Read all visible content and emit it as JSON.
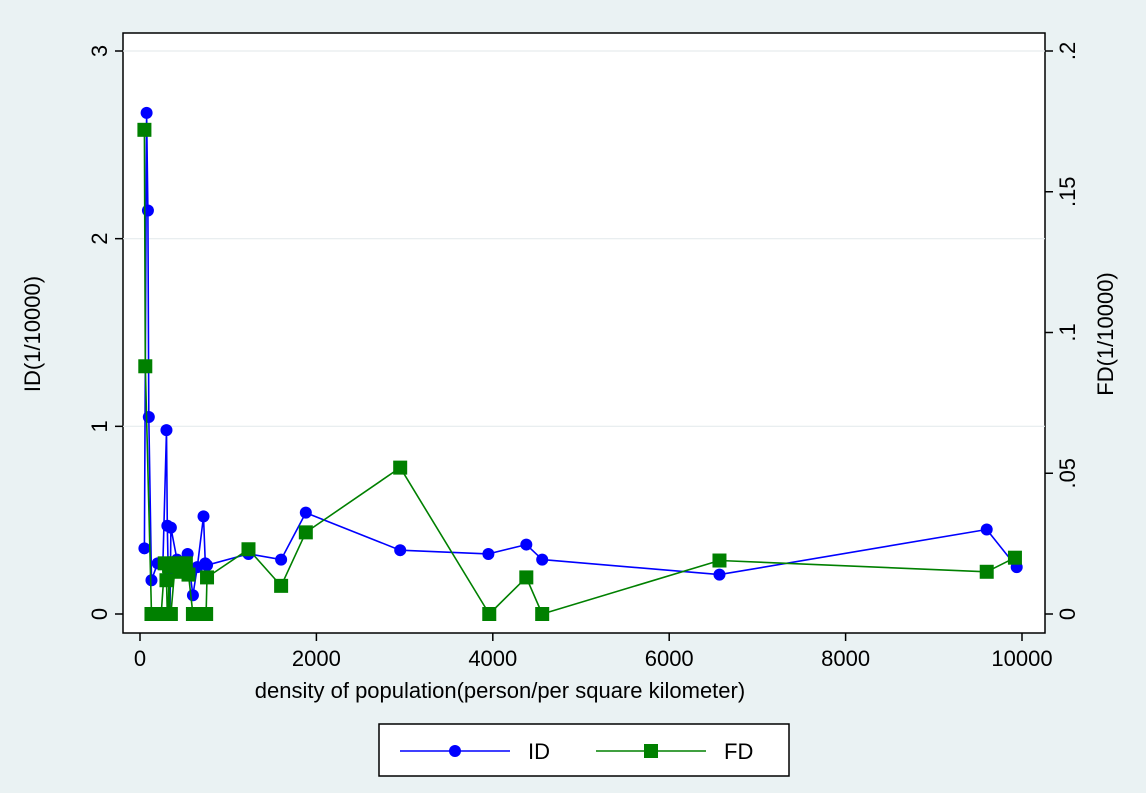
{
  "chart_data": {
    "type": "line",
    "xlabel": "density of population(person/per square kilometer)",
    "y1label": "ID(1/10000)",
    "y2label": "FD(1/10000)",
    "xlim": [
      0,
      10000
    ],
    "y1lim": [
      0,
      3
    ],
    "y2lim": [
      0,
      0.2
    ],
    "x_ticks": [
      0,
      2000,
      4000,
      6000,
      8000,
      10000
    ],
    "x_tick_labels": [
      "0",
      "2000",
      "4000",
      "6000",
      "8000",
      "10000"
    ],
    "y1_ticks": [
      0,
      1,
      2,
      3
    ],
    "y1_tick_labels": [
      "0",
      "1",
      "2",
      "3"
    ],
    "y2_ticks": [
      0,
      0.05,
      0.1,
      0.15,
      0.2
    ],
    "y2_tick_labels": [
      "0",
      ".05",
      ".1",
      ".15",
      ".2"
    ],
    "grid": true,
    "legend_position": "bottom",
    "series": [
      {
        "name": "ID",
        "axis": "left",
        "color": "#0000ff",
        "marker": "circle",
        "x": [
          50,
          75,
          90,
          100,
          130,
          200,
          260,
          300,
          310,
          320,
          340,
          350,
          420,
          480,
          540,
          600,
          650,
          720,
          740,
          760,
          1230,
          1600,
          1880,
          2950,
          3950,
          4380,
          4560,
          6570,
          9600,
          9940
        ],
        "y": [
          0.35,
          2.67,
          2.15,
          1.05,
          0.18,
          0.27,
          0.27,
          0.98,
          0.47,
          0.23,
          0.0,
          0.46,
          0.29,
          0.26,
          0.32,
          0.1,
          0.25,
          0.52,
          0.27,
          0.26,
          0.32,
          0.29,
          0.54,
          0.34,
          0.32,
          0.37,
          0.29,
          0.21,
          0.45,
          0.25
        ]
      },
      {
        "name": "FD",
        "axis": "right",
        "color": "#008000",
        "marker": "square",
        "x": [
          50,
          60,
          130,
          200,
          240,
          280,
          300,
          310,
          320,
          330,
          340,
          350,
          400,
          450,
          520,
          550,
          600,
          650,
          700,
          750,
          760,
          1230,
          1600,
          1880,
          2950,
          3960,
          4380,
          4560,
          6570,
          9600,
          9920
        ],
        "y": [
          0.172,
          0.088,
          0.0,
          0.0,
          0.0,
          0.018,
          0.012,
          0.0,
          0.0,
          0.017,
          0.0,
          0.0,
          0.018,
          0.015,
          0.018,
          0.014,
          0.0,
          0.0,
          0.0,
          0.0,
          0.013,
          0.023,
          0.01,
          0.029,
          0.052,
          0.0,
          0.013,
          0.0,
          0.019,
          0.015,
          0.02
        ]
      }
    ]
  }
}
